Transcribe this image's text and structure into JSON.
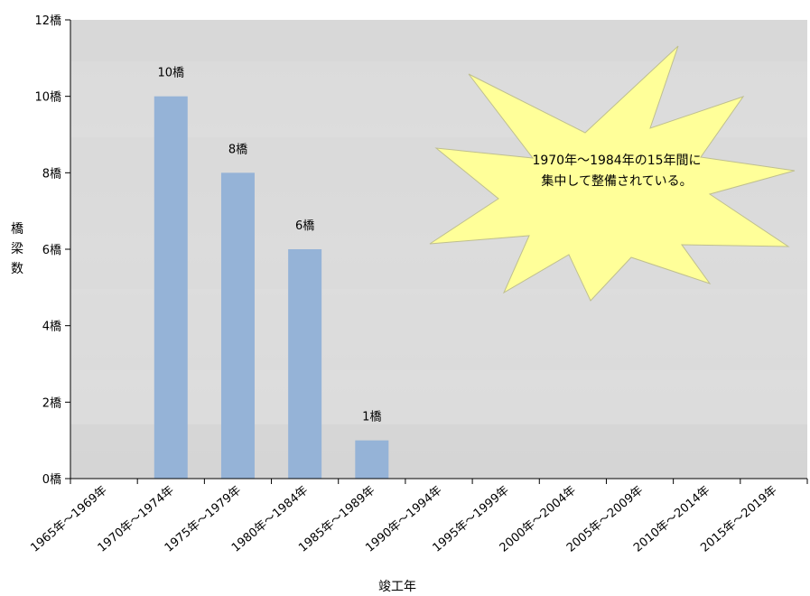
{
  "chart_data": {
    "type": "bar",
    "categories": [
      "1965年～1969年",
      "1970年～1974年",
      "1975年～1979年",
      "1980年～1984年",
      "1985年～1989年",
      "1990年～1994年",
      "1995年～1999年",
      "2000年～2004年",
      "2005年～2009年",
      "2010年～2014年",
      "2015年～2019年"
    ],
    "values": [
      0,
      10,
      8,
      6,
      1,
      0,
      0,
      0,
      0,
      0,
      0
    ],
    "data_labels": [
      "",
      "10橋",
      "8橋",
      "6橋",
      "1橋",
      "",
      "",
      "",
      "",
      "",
      ""
    ],
    "y_ticks": [
      {
        "value": 0,
        "label": "0橋"
      },
      {
        "value": 2,
        "label": "2橋"
      },
      {
        "value": 4,
        "label": "4橋"
      },
      {
        "value": 6,
        "label": "6橋"
      },
      {
        "value": 8,
        "label": "8橋"
      },
      {
        "value": 10,
        "label": "10橋"
      },
      {
        "value": 12,
        "label": "12橋"
      }
    ],
    "ylim": [
      0,
      12
    ],
    "xlabel": "竣工年",
    "ylabel": [
      "橋",
      "梁",
      "数"
    ],
    "annotation": [
      "1970年～1984年の15年間に",
      "集中して整備されている。"
    ],
    "colors": {
      "bar": "#95b3d7",
      "plot_background": "#d9d9d9",
      "callout_fill": "#ffff99"
    }
  }
}
